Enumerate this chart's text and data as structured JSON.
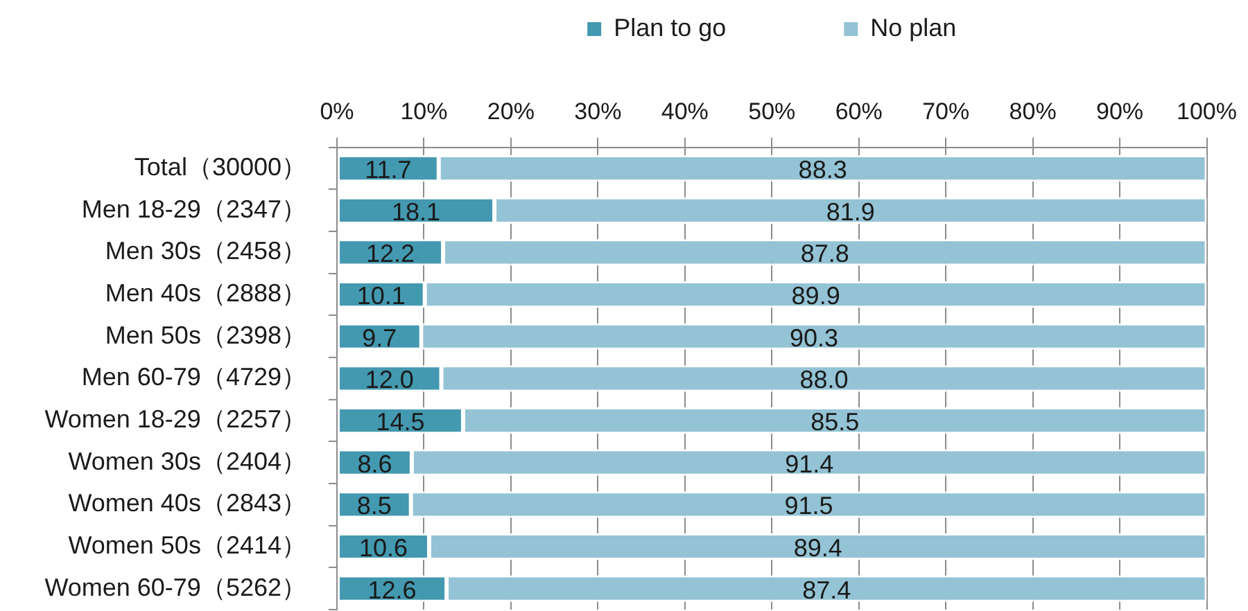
{
  "chart_data": {
    "type": "bar",
    "orientation": "horizontal",
    "stacked": true,
    "categories": [
      "Total（30000）",
      "Men 18-29（2347）",
      "Men 30s（2458）",
      "Men 40s（2888）",
      "Men 50s（2398）",
      "Men 60-79（4729）",
      "Women 18-29（2257）",
      "Women 30s（2404）",
      "Women 40s（2843）",
      "Women 50s（2414）",
      "Women 60-79（5262）"
    ],
    "series": [
      {
        "name": "Plan to go",
        "color": "#4399b0",
        "values": [
          11.7,
          18.1,
          12.2,
          10.1,
          9.7,
          12.0,
          14.5,
          8.6,
          8.5,
          10.6,
          12.6
        ],
        "value_labels": [
          "11.7",
          "18.1",
          "12.2",
          "10.1",
          "9.7",
          "12.0",
          "14.5",
          "8.6",
          "8.5",
          "10.6",
          "12.6"
        ]
      },
      {
        "name": "No plan",
        "color": "#93c3d5",
        "values": [
          88.3,
          81.9,
          87.8,
          89.9,
          90.3,
          88.0,
          85.5,
          91.4,
          91.5,
          89.4,
          87.4
        ],
        "value_labels": [
          "88.3",
          "81.9",
          "87.8",
          "89.9",
          "90.3",
          "88.0",
          "85.5",
          "91.4",
          "91.5",
          "89.4",
          "87.4"
        ]
      }
    ],
    "xlim": [
      0,
      100
    ],
    "xticks": [
      {
        "value": 0,
        "label": "0%"
      },
      {
        "value": 10,
        "label": "10%"
      },
      {
        "value": 20,
        "label": "20%"
      },
      {
        "value": 30,
        "label": "30%"
      },
      {
        "value": 40,
        "label": "40%"
      },
      {
        "value": 50,
        "label": "50%"
      },
      {
        "value": 60,
        "label": "60%"
      },
      {
        "value": 70,
        "label": "70%"
      },
      {
        "value": 80,
        "label": "80%"
      },
      {
        "value": 90,
        "label": "90%"
      },
      {
        "value": 100,
        "label": "100%"
      }
    ],
    "grid": "x",
    "legend": "top"
  }
}
